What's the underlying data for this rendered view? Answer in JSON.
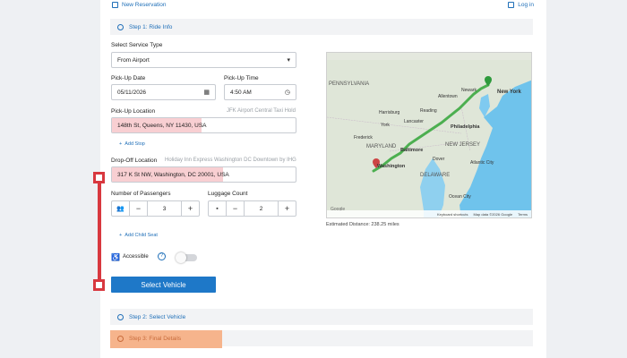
{
  "header": {
    "new_reservation": "New Reservation",
    "login": "Log in"
  },
  "steps": {
    "step1": "Step 1: Ride Info",
    "step2": "Step 2: Select Vehicle",
    "step3": "Step 3: Final Details"
  },
  "form": {
    "service_type_label": "Select Service Type",
    "service_type_value": "From Airport",
    "pickup_date_label": "Pick-Up Date",
    "pickup_date_value": "05/11/2026",
    "pickup_time_label": "Pick-Up Time",
    "pickup_time_value": "4:50 AM",
    "pickup_location_label": "Pick-Up Location",
    "pickup_location_hint": "JFK Airport Central Taxi Hold",
    "pickup_location_value": "148th St, Queens, NY 11430, USA",
    "add_stop": "Add Stop",
    "dropoff_location_label": "Drop-Off Location",
    "dropoff_location_hint": "Holiday Inn Express Washington DC Downtown by IHG",
    "dropoff_location_value": "317 K St NW, Washington, DC 20001, USA",
    "passengers_label": "Number of Passengers",
    "passengers_value": "3",
    "luggage_label": "Luggage Count",
    "luggage_value": "2",
    "add_child_seat": "Add Child Seat",
    "accessible_label": "Accessible",
    "accessible_on": false,
    "select_vehicle": "Select Vehicle"
  },
  "map": {
    "labels": [
      "PENNSYLVANIA",
      "New York",
      "Newark",
      "Allentown",
      "Harrisburg",
      "Reading",
      "Philadelphia",
      "Lancaster",
      "York",
      "Baltimore",
      "MARYLAND",
      "NEW JERSEY",
      "DELAWARE",
      "Washington",
      "Dover",
      "Atlantic City",
      "Ocean City",
      "Frederick"
    ],
    "footer_shortcuts": "Keyboard shortcuts",
    "footer_data": "Map data ©2026 Google",
    "footer_terms": "Terms",
    "estimated_distance": "Estimated Distance: 238.25 miles"
  },
  "colors": {
    "accent": "#1e78c8",
    "annotation": "#d8383f",
    "highlight_field": "#f8cfd2",
    "highlight_step": "#f6b48c",
    "route": "#4caf50"
  }
}
